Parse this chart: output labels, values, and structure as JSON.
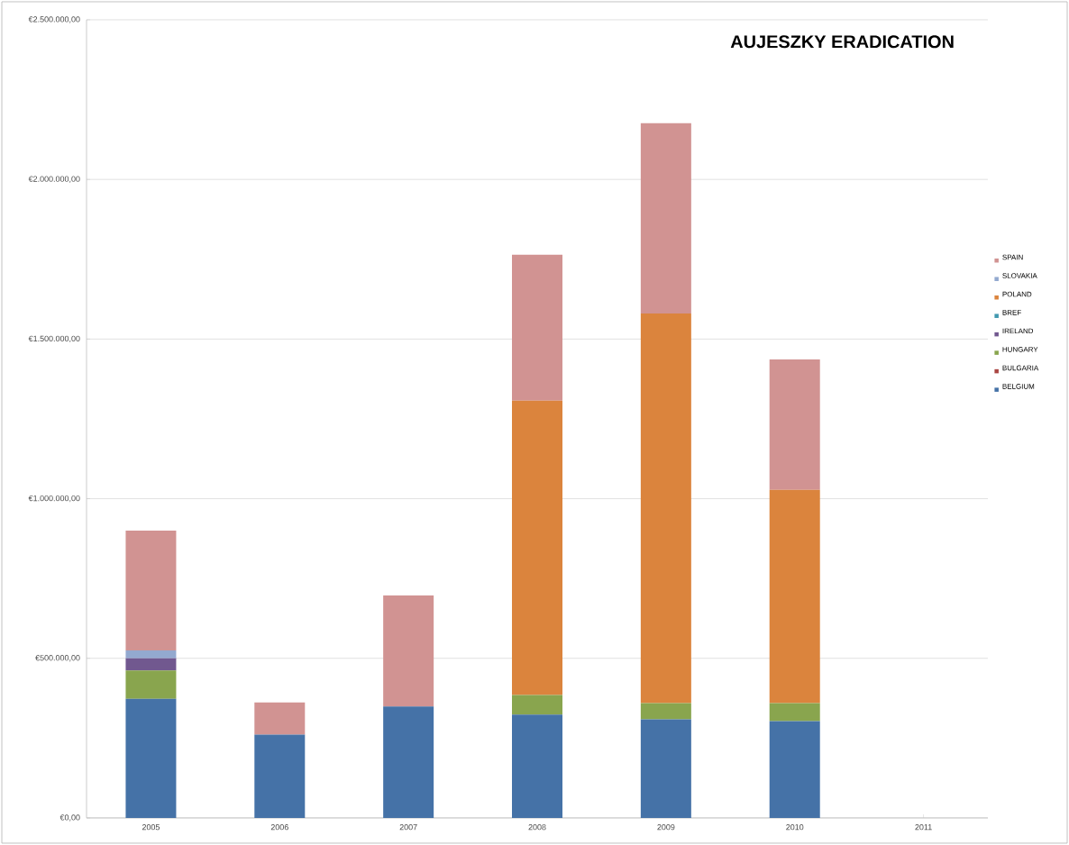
{
  "chart_data": {
    "type": "bar",
    "title": "AUJESZKY ERADICATION",
    "stacked": true,
    "grid": "y",
    "legend": "right",
    "categories": [
      "2005",
      "2006",
      "2007",
      "2008",
      "2009",
      "2010",
      "2011"
    ],
    "ylim": [
      0,
      2500000
    ],
    "yticks": [
      {
        "value": 0,
        "label": "€0,00"
      },
      {
        "value": 500000,
        "label": "€500.000,00"
      },
      {
        "value": 1000000,
        "label": "€1.000.000,00"
      },
      {
        "value": 1500000,
        "label": "€1.500.000,00"
      },
      {
        "value": 2000000,
        "label": "€2.000.000,00"
      },
      {
        "value": 2500000,
        "label": "€2.500.000,00"
      }
    ],
    "series": [
      {
        "name": "BELGIUM",
        "color": "#4572a7",
        "values": [
          373000,
          261000,
          349000,
          324000,
          309000,
          303000,
          0
        ]
      },
      {
        "name": "BULGARIA",
        "color": "#aa4643",
        "values": [
          0,
          0,
          0,
          0,
          0,
          0,
          0
        ]
      },
      {
        "name": "HUNGARY",
        "color": "#89a54e",
        "values": [
          89000,
          0,
          0,
          61000,
          51000,
          57000,
          0
        ]
      },
      {
        "name": "IRELAND",
        "color": "#71588f",
        "values": [
          38000,
          0,
          0,
          0,
          0,
          0,
          0
        ]
      },
      {
        "name": "BREF",
        "color": "#4198af",
        "values": [
          0,
          0,
          0,
          0,
          0,
          0,
          0
        ]
      },
      {
        "name": "POLAND",
        "color": "#db843d",
        "values": [
          0,
          0,
          0,
          922000,
          1220000,
          668000,
          0
        ]
      },
      {
        "name": "SLOVAKIA",
        "color": "#93a9cf",
        "values": [
          25000,
          0,
          0,
          0,
          0,
          0,
          0
        ]
      },
      {
        "name": "SPAIN",
        "color": "#d19392",
        "values": [
          375000,
          101000,
          348000,
          457000,
          596000,
          408000,
          0
        ]
      }
    ]
  }
}
